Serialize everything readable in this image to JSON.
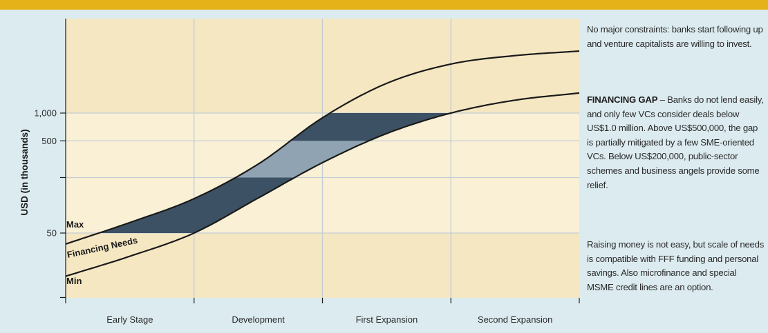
{
  "colors": {
    "top_bar": "#e6b21a",
    "background": "#dcebf0",
    "plot_light": "#faf0d6",
    "plot_dark": "#f5e7c2",
    "gap_dark": "#3d5164",
    "gap_light": "#8fa3b3",
    "curve": "#1a1a1a",
    "grid": "#c4cdd3"
  },
  "chart_data": {
    "type": "area",
    "ylabel": "USD (in thousands)",
    "xlabel": "",
    "categories": [
      "Early Stage",
      "Development",
      "First Expansion",
      "Second Expansion"
    ],
    "y_scale": "log",
    "yticks": [
      {
        "label": "1,000",
        "value": 1000
      },
      {
        "label": "500",
        "value": 500
      },
      {
        "label": "",
        "value": 200
      },
      {
        "label": "50",
        "value": 50
      },
      {
        "label": "",
        "value": 10
      }
    ],
    "ylim": [
      10,
      10000
    ],
    "xlim": [
      0,
      4
    ],
    "grid": true,
    "band_labels": {
      "max": "Max",
      "needs": "Financing Needs",
      "min": "Min"
    },
    "series": [
      {
        "name": "Max",
        "points": [
          [
            0,
            38
          ],
          [
            0.5,
            65
          ],
          [
            1,
            118
          ],
          [
            1.5,
            280
          ],
          [
            2,
            890
          ],
          [
            2.5,
            2100
          ],
          [
            3,
            3400
          ],
          [
            3.5,
            4200
          ],
          [
            4,
            4700
          ]
        ]
      },
      {
        "name": "Min",
        "points": [
          [
            0,
            17
          ],
          [
            0.5,
            28
          ],
          [
            1,
            50
          ],
          [
            1.5,
            120
          ],
          [
            2,
            290
          ],
          [
            2.5,
            600
          ],
          [
            3,
            1000
          ],
          [
            3.5,
            1380
          ],
          [
            4,
            1650
          ]
        ]
      }
    ],
    "gap_bands": [
      {
        "shade": "dark",
        "from": 50,
        "to": 200
      },
      {
        "shade": "light",
        "from": 200,
        "to": 500
      },
      {
        "shade": "dark",
        "from": 500,
        "to": 1000
      }
    ]
  },
  "notes": {
    "top": "No major constraints: banks start following up and venture capitalists are willing to invest.",
    "gap_heading": "FINANCING GAP",
    "gap_text": " – Banks do not lend easily, and only few VCs consider deals below US$1.0 million. Above US$500,000, the gap is partially mitigated by a few SME-oriented VCs. Below US$200,000, public-sector schemes and business angels provide some relief.",
    "bottom": "Raising money is not easy, but scale of needs is compatible with FFF funding and personal savings. Also microfinance and special MSME credit lines are an option."
  }
}
